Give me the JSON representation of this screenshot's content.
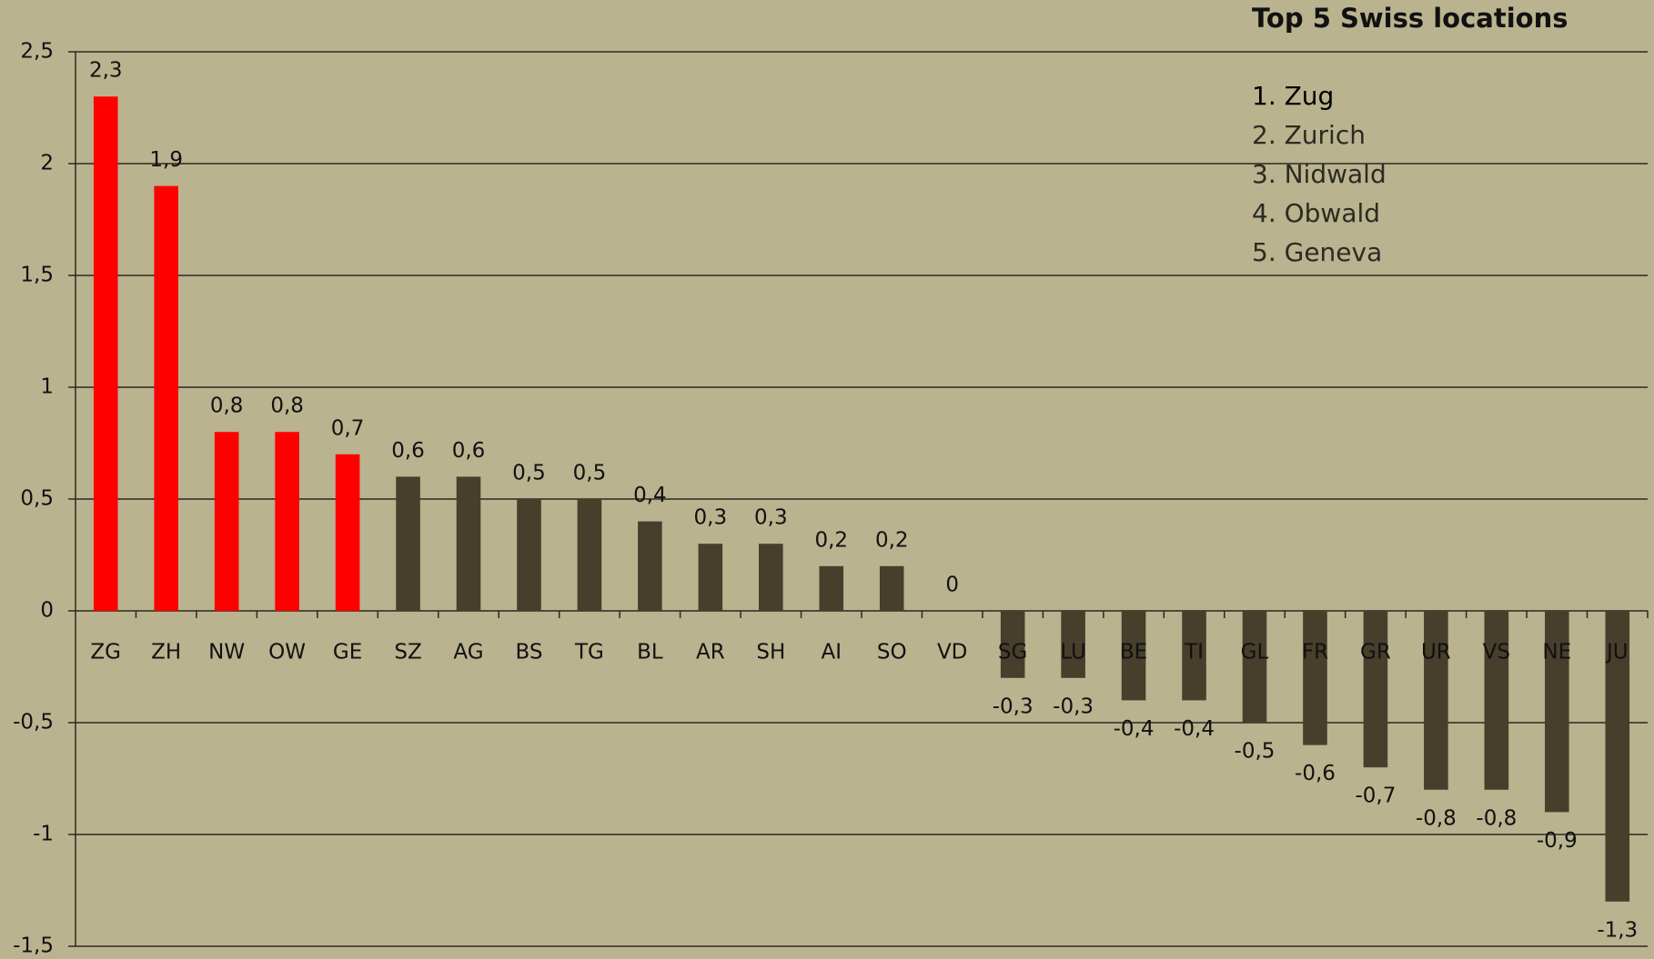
{
  "chart_data": {
    "type": "bar",
    "categories": [
      "ZG",
      "ZH",
      "NW",
      "OW",
      "GE",
      "SZ",
      "AG",
      "BS",
      "TG",
      "BL",
      "AR",
      "SH",
      "AI",
      "SO",
      "VD",
      "SG",
      "LU",
      "BE",
      "TI",
      "GL",
      "FR",
      "GR",
      "UR",
      "VS",
      "NE",
      "JU"
    ],
    "values": [
      2.3,
      1.9,
      0.8,
      0.8,
      0.7,
      0.6,
      0.6,
      0.5,
      0.5,
      0.4,
      0.3,
      0.3,
      0.2,
      0.2,
      0,
      -0.3,
      -0.3,
      -0.4,
      -0.4,
      -0.5,
      -0.6,
      -0.7,
      -0.8,
      -0.8,
      -0.9,
      -1.3
    ],
    "value_labels": [
      "2,3",
      "1,9",
      "0,8",
      "0,8",
      "0,7",
      "0,6",
      "0,6",
      "0,5",
      "0,5",
      "0,4",
      "0,3",
      "0,3",
      "0,2",
      "0,2",
      "0",
      "-0,3",
      "-0,3",
      "-0,4",
      "-0,4",
      "-0,5",
      "-0,6",
      "-0,7",
      "-0,8",
      "-0,8",
      "-0,9",
      "-1,3"
    ],
    "colors": [
      "#ff0000",
      "#ff0000",
      "#ff0000",
      "#ff0000",
      "#ff0000",
      "#473f2b",
      "#473f2b",
      "#473f2b",
      "#473f2b",
      "#473f2b",
      "#473f2b",
      "#473f2b",
      "#473f2b",
      "#473f2b",
      "#473f2b",
      "#473f2b",
      "#473f2b",
      "#473f2b",
      "#473f2b",
      "#473f2b",
      "#473f2b",
      "#473f2b",
      "#473f2b",
      "#473f2b",
      "#473f2b",
      "#473f2b"
    ],
    "ylim": [
      -1.5,
      2.5
    ],
    "yticks": [
      {
        "value": -1.5,
        "label": "-1,5"
      },
      -1,
      {
        "value": -0.5,
        "label": "-0,5"
      },
      0,
      {
        "value": 0.5,
        "label": "0,5"
      },
      1,
      {
        "value": 1.5,
        "label": "1,5"
      },
      2,
      {
        "value": 2.5,
        "label": "2,5"
      }
    ],
    "grid": true,
    "annotation": {
      "title": "Top 5 Swiss locations",
      "items": [
        "1. Zug",
        "2. Zurich",
        "3. Nidwald",
        "4. Obwald",
        "5. Geneva"
      ]
    }
  }
}
